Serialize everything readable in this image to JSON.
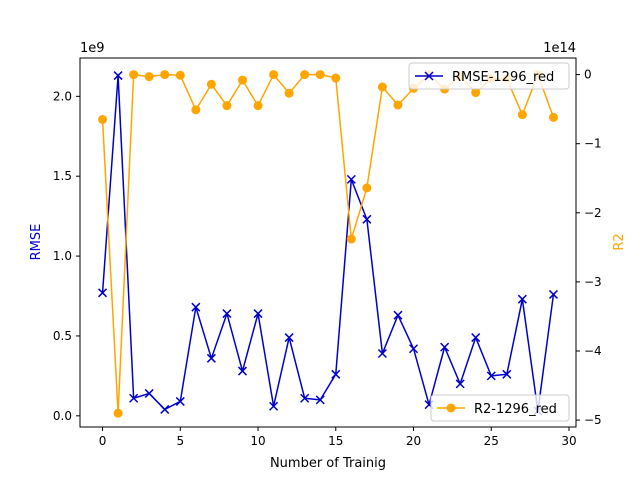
{
  "chart_data": {
    "type": "line",
    "title": "",
    "xlabel": "Number of Trainig",
    "xlim": [
      -1.45,
      30.45
    ],
    "xticks": [
      0,
      5,
      10,
      15,
      20,
      25,
      30
    ],
    "left_axis": {
      "label": "RMSE",
      "color": "#0000cc",
      "scale_label": "1e9",
      "ylim": [
        -0.07,
        2.24
      ],
      "ticks": [
        0.0,
        0.5,
        1.0,
        1.5,
        2.0
      ],
      "tick_labels": [
        "0.0",
        "0.5",
        "1.0",
        "1.5",
        "2.0"
      ]
    },
    "right_axis": {
      "label": "R2",
      "color": "#ffa500",
      "scale_label": "1e14",
      "ylim": [
        -5.1,
        0.24
      ],
      "ticks": [
        0,
        -1,
        -2,
        -3,
        -4,
        -5
      ],
      "tick_labels": [
        "0",
        "−1",
        "−2",
        "−3",
        "−4",
        "−5"
      ]
    },
    "x": [
      0,
      1,
      2,
      3,
      4,
      5,
      6,
      7,
      8,
      9,
      10,
      11,
      12,
      13,
      14,
      15,
      16,
      17,
      18,
      19,
      20,
      21,
      22,
      23,
      24,
      25,
      26,
      27,
      28,
      29
    ],
    "series": [
      {
        "name": "RMSE-1296_red",
        "axis": "left",
        "color": "#0000cc",
        "marker": "x",
        "legend_position": "top-right",
        "values": [
          0.77,
          2.13,
          0.11,
          0.14,
          0.04,
          0.09,
          0.68,
          0.36,
          0.64,
          0.28,
          0.64,
          0.06,
          0.49,
          0.11,
          0.1,
          0.26,
          1.48,
          1.23,
          0.39,
          0.63,
          0.42,
          0.07,
          0.43,
          0.2,
          0.49,
          0.25,
          0.26,
          0.73,
          0.03,
          0.76
        ]
      },
      {
        "name": "R2-1296_red",
        "axis": "right",
        "color": "#ffa500",
        "marker": "o",
        "legend_position": "bottom-right",
        "values": [
          -0.65,
          -4.9,
          0.0,
          -0.03,
          0.0,
          -0.01,
          -0.51,
          -0.14,
          -0.45,
          -0.08,
          -0.45,
          0.0,
          -0.27,
          0.0,
          0.0,
          -0.05,
          -2.38,
          -1.64,
          -0.18,
          -0.44,
          -0.2,
          0.0,
          -0.21,
          -0.03,
          -0.26,
          -0.06,
          -0.06,
          -0.58,
          0.0,
          -0.62
        ]
      }
    ]
  }
}
